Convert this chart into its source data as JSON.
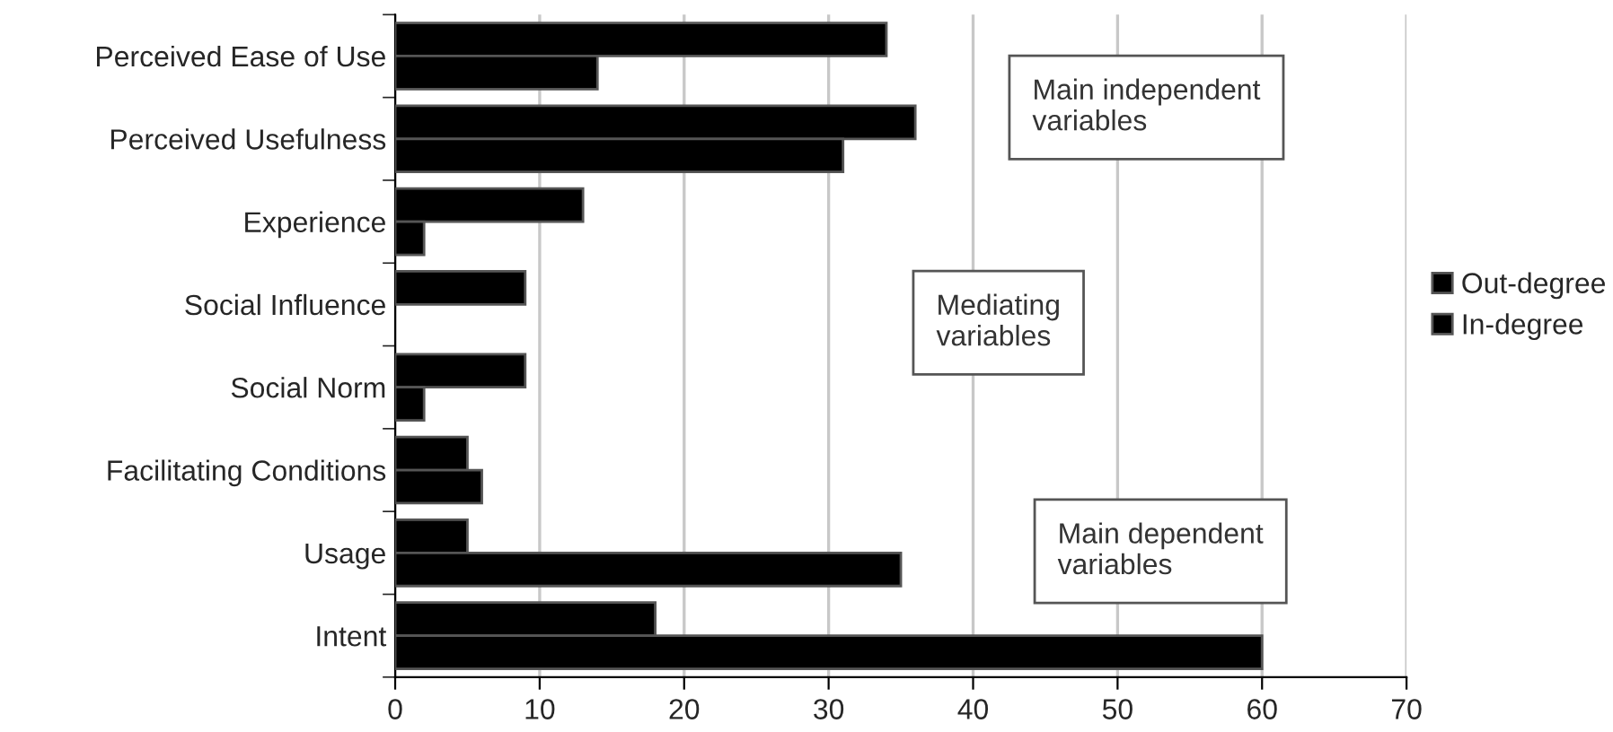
{
  "chart_data": {
    "type": "bar",
    "orientation": "horizontal",
    "categories": [
      "Perceived Ease of Use",
      "Perceived Usefulness",
      "Experience",
      "Social Influence",
      "Social Norm",
      "Facilitating Conditions",
      "Usage",
      "Intent"
    ],
    "series": [
      {
        "name": "Out-degree",
        "color": "#000000",
        "values": [
          34,
          36,
          13,
          9,
          9,
          5,
          5,
          18
        ]
      },
      {
        "name": "In-degree",
        "color": "#000000",
        "values": [
          14,
          31,
          2,
          null,
          2,
          6,
          35,
          60
        ]
      }
    ],
    "xlim": [
      0,
      70
    ],
    "xticks": [
      0,
      10,
      20,
      30,
      40,
      50,
      60,
      70
    ],
    "grid": "x",
    "legend": "right",
    "annotations": [
      "Main independent\nvariables",
      "Mediating\nvariables",
      "Main dependent\nvariables"
    ]
  }
}
